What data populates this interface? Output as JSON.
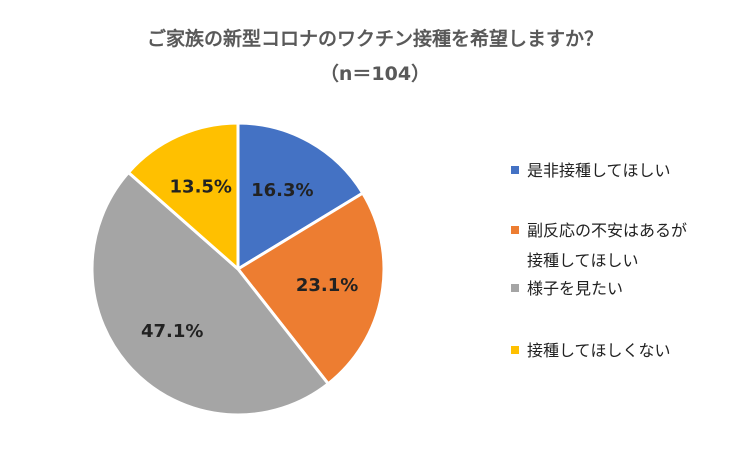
{
  "chart_data": {
    "type": "pie",
    "title": "ご家族の新型コロナのワクチン接種を希望しますか？",
    "subtitle": "（n＝104）",
    "legend_position": "right",
    "slices": [
      {
        "label": "是非接種してほしい",
        "legend_lines": [
          "是非接種してほしい"
        ],
        "value": 16.3,
        "display": "16.3%",
        "color": "#4472C4"
      },
      {
        "label": "副反応の不安はあるが接種してほしい",
        "legend_lines": [
          "副反応の不安はあるが",
          "接種してほしい"
        ],
        "value": 23.1,
        "display": "23.1%",
        "color": "#ED7D31"
      },
      {
        "label": "様子を見たい",
        "legend_lines": [
          "様子を見たい"
        ],
        "value": 47.1,
        "display": "47.1%",
        "color": "#A5A5A5"
      },
      {
        "label": "接種してほしくない",
        "legend_lines": [
          "接種してほしくない"
        ],
        "value": 13.5,
        "display": "13.5%",
        "color": "#FFC000"
      }
    ]
  }
}
